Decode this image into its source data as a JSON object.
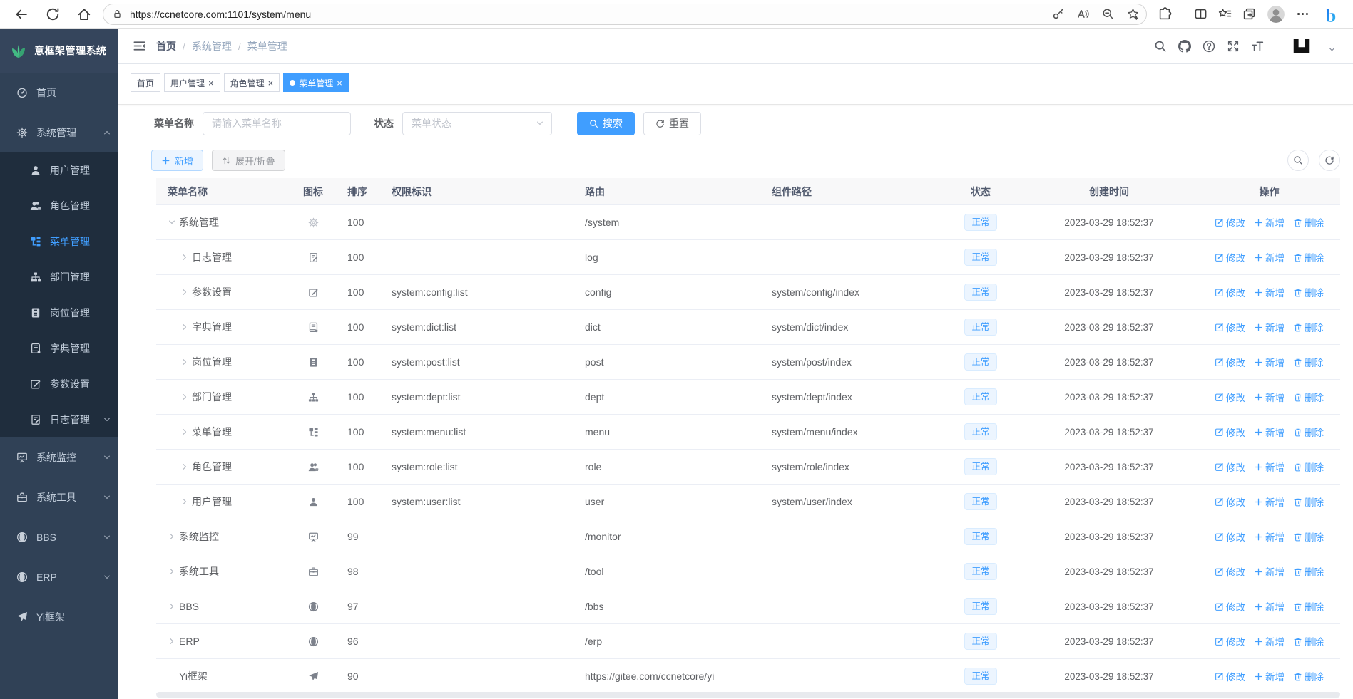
{
  "browser": {
    "url": "https://ccnetcore.com:1101/system/menu"
  },
  "sidebar": {
    "logo_text": "意框架管理系统",
    "items": [
      {
        "key": "home",
        "label": "首页",
        "icon": "dashboard-icon"
      },
      {
        "key": "system",
        "label": "系统管理",
        "icon": "gear-icon",
        "caret": "up",
        "expanded": true,
        "children": [
          {
            "key": "user",
            "label": "用户管理",
            "icon": "user-icon"
          },
          {
            "key": "role",
            "label": "角色管理",
            "icon": "users-icon"
          },
          {
            "key": "menu",
            "label": "菜单管理",
            "icon": "menu-tree-icon",
            "active": true
          },
          {
            "key": "dept",
            "label": "部门管理",
            "icon": "org-tree-icon"
          },
          {
            "key": "post",
            "label": "岗位管理",
            "icon": "badge-icon"
          },
          {
            "key": "dict",
            "label": "字典管理",
            "icon": "book-icon"
          },
          {
            "key": "config",
            "label": "参数设置",
            "icon": "edit-pen-icon"
          },
          {
            "key": "log",
            "label": "日志管理",
            "icon": "edit-note-icon",
            "caret": "down"
          }
        ]
      },
      {
        "key": "monitor",
        "label": "系统监控",
        "icon": "monitor-icon",
        "caret": "down"
      },
      {
        "key": "tool",
        "label": "系统工具",
        "icon": "briefcase-icon",
        "caret": "down"
      },
      {
        "key": "bbs",
        "label": "BBS",
        "icon": "globe-icon",
        "caret": "down"
      },
      {
        "key": "erp",
        "label": "ERP",
        "icon": "globe-icon",
        "caret": "down"
      },
      {
        "key": "yi",
        "label": "Yi框架",
        "icon": "paper-plane-icon"
      }
    ]
  },
  "navbar": {
    "breadcrumb": [
      "首页",
      "系统管理",
      "菜单管理"
    ]
  },
  "tabs": [
    {
      "key": "home",
      "label": "首页",
      "closable": false,
      "active": false
    },
    {
      "key": "user",
      "label": "用户管理",
      "closable": true,
      "active": false
    },
    {
      "key": "role",
      "label": "角色管理",
      "closable": true,
      "active": false
    },
    {
      "key": "menu",
      "label": "菜单管理",
      "closable": true,
      "active": true
    }
  ],
  "filters": {
    "name_label": "菜单名称",
    "name_placeholder": "请输入菜单名称",
    "name_value": "",
    "status_label": "状态",
    "status_placeholder": "菜单状态",
    "search_label": "搜索",
    "reset_label": "重置"
  },
  "toolbar": {
    "add_label": "新增",
    "expand_label": "展开/折叠"
  },
  "table": {
    "columns": [
      "菜单名称",
      "图标",
      "排序",
      "权限标识",
      "路由",
      "组件路径",
      "状态",
      "创建时间",
      "操作"
    ],
    "ops": [
      {
        "key": "edit",
        "label": "修改",
        "icon": "edit-square-icon"
      },
      {
        "key": "add",
        "label": "新增",
        "icon": "plus-icon"
      },
      {
        "key": "delete",
        "label": "删除",
        "icon": "trash-icon"
      }
    ],
    "rows": [
      {
        "name": "系统管理",
        "level": 0,
        "arrow": "down",
        "icon": "gear-icon",
        "icon_style": "light",
        "sort": "100",
        "perms": "",
        "route": "/system",
        "component": "",
        "status": "正常",
        "created": "2023-03-29 18:52:37"
      },
      {
        "name": "日志管理",
        "level": 1,
        "arrow": "right",
        "icon": "edit-note-icon",
        "icon_style": "",
        "sort": "100",
        "perms": "",
        "route": "log",
        "component": "",
        "status": "正常",
        "created": "2023-03-29 18:52:37"
      },
      {
        "name": "参数设置",
        "level": 1,
        "arrow": "right",
        "icon": "edit-pen-icon",
        "icon_style": "",
        "sort": "100",
        "perms": "system:config:list",
        "route": "config",
        "component": "system/config/index",
        "status": "正常",
        "created": "2023-03-29 18:52:37"
      },
      {
        "name": "字典管理",
        "level": 1,
        "arrow": "right",
        "icon": "book-icon",
        "icon_style": "",
        "sort": "100",
        "perms": "system:dict:list",
        "route": "dict",
        "component": "system/dict/index",
        "status": "正常",
        "created": "2023-03-29 18:52:37"
      },
      {
        "name": "岗位管理",
        "level": 1,
        "arrow": "right",
        "icon": "badge-icon",
        "icon_style": "",
        "sort": "100",
        "perms": "system:post:list",
        "route": "post",
        "component": "system/post/index",
        "status": "正常",
        "created": "2023-03-29 18:52:37"
      },
      {
        "name": "部门管理",
        "level": 1,
        "arrow": "right",
        "icon": "org-tree-icon",
        "icon_style": "",
        "sort": "100",
        "perms": "system:dept:list",
        "route": "dept",
        "component": "system/dept/index",
        "status": "正常",
        "created": "2023-03-29 18:52:37"
      },
      {
        "name": "菜单管理",
        "level": 1,
        "arrow": "right",
        "icon": "menu-tree-icon",
        "icon_style": "",
        "sort": "100",
        "perms": "system:menu:list",
        "route": "menu",
        "component": "system/menu/index",
        "status": "正常",
        "created": "2023-03-29 18:52:37"
      },
      {
        "name": "角色管理",
        "level": 1,
        "arrow": "right",
        "icon": "users-icon",
        "icon_style": "",
        "sort": "100",
        "perms": "system:role:list",
        "route": "role",
        "component": "system/role/index",
        "status": "正常",
        "created": "2023-03-29 18:52:37"
      },
      {
        "name": "用户管理",
        "level": 1,
        "arrow": "right",
        "icon": "user-icon",
        "icon_style": "",
        "sort": "100",
        "perms": "system:user:list",
        "route": "user",
        "component": "system/user/index",
        "status": "正常",
        "created": "2023-03-29 18:52:37"
      },
      {
        "name": "系统监控",
        "level": 0,
        "arrow": "right",
        "icon": "monitor-icon",
        "icon_style": "",
        "sort": "99",
        "perms": "",
        "route": "/monitor",
        "component": "",
        "status": "正常",
        "created": "2023-03-29 18:52:37"
      },
      {
        "name": "系统工具",
        "level": 0,
        "arrow": "right",
        "icon": "briefcase-icon",
        "icon_style": "",
        "sort": "98",
        "perms": "",
        "route": "/tool",
        "component": "",
        "status": "正常",
        "created": "2023-03-29 18:52:37"
      },
      {
        "name": "BBS",
        "level": 0,
        "arrow": "right",
        "icon": "globe-icon",
        "icon_style": "",
        "sort": "97",
        "perms": "",
        "route": "/bbs",
        "component": "",
        "status": "正常",
        "created": "2023-03-29 18:52:37"
      },
      {
        "name": "ERP",
        "level": 0,
        "arrow": "right",
        "icon": "globe-icon",
        "icon_style": "",
        "sort": "96",
        "perms": "",
        "route": "/erp",
        "component": "",
        "status": "正常",
        "created": "2023-03-29 18:52:37"
      },
      {
        "name": "Yi框架",
        "level": 0,
        "arrow": "none",
        "icon": "paper-plane-icon",
        "icon_style": "",
        "sort": "90",
        "perms": "",
        "route": "https://gitee.com/ccnetcore/yi",
        "component": "",
        "status": "正常",
        "created": "2023-03-29 18:52:37"
      }
    ]
  },
  "colors": {
    "accent": "#409eff",
    "sidebar_bg": "#304156",
    "submenu_bg": "#1f2d3d",
    "tag_bg": "#ecf5ff",
    "tag_border": "#d9ecff",
    "logo_green": "#42b983"
  }
}
